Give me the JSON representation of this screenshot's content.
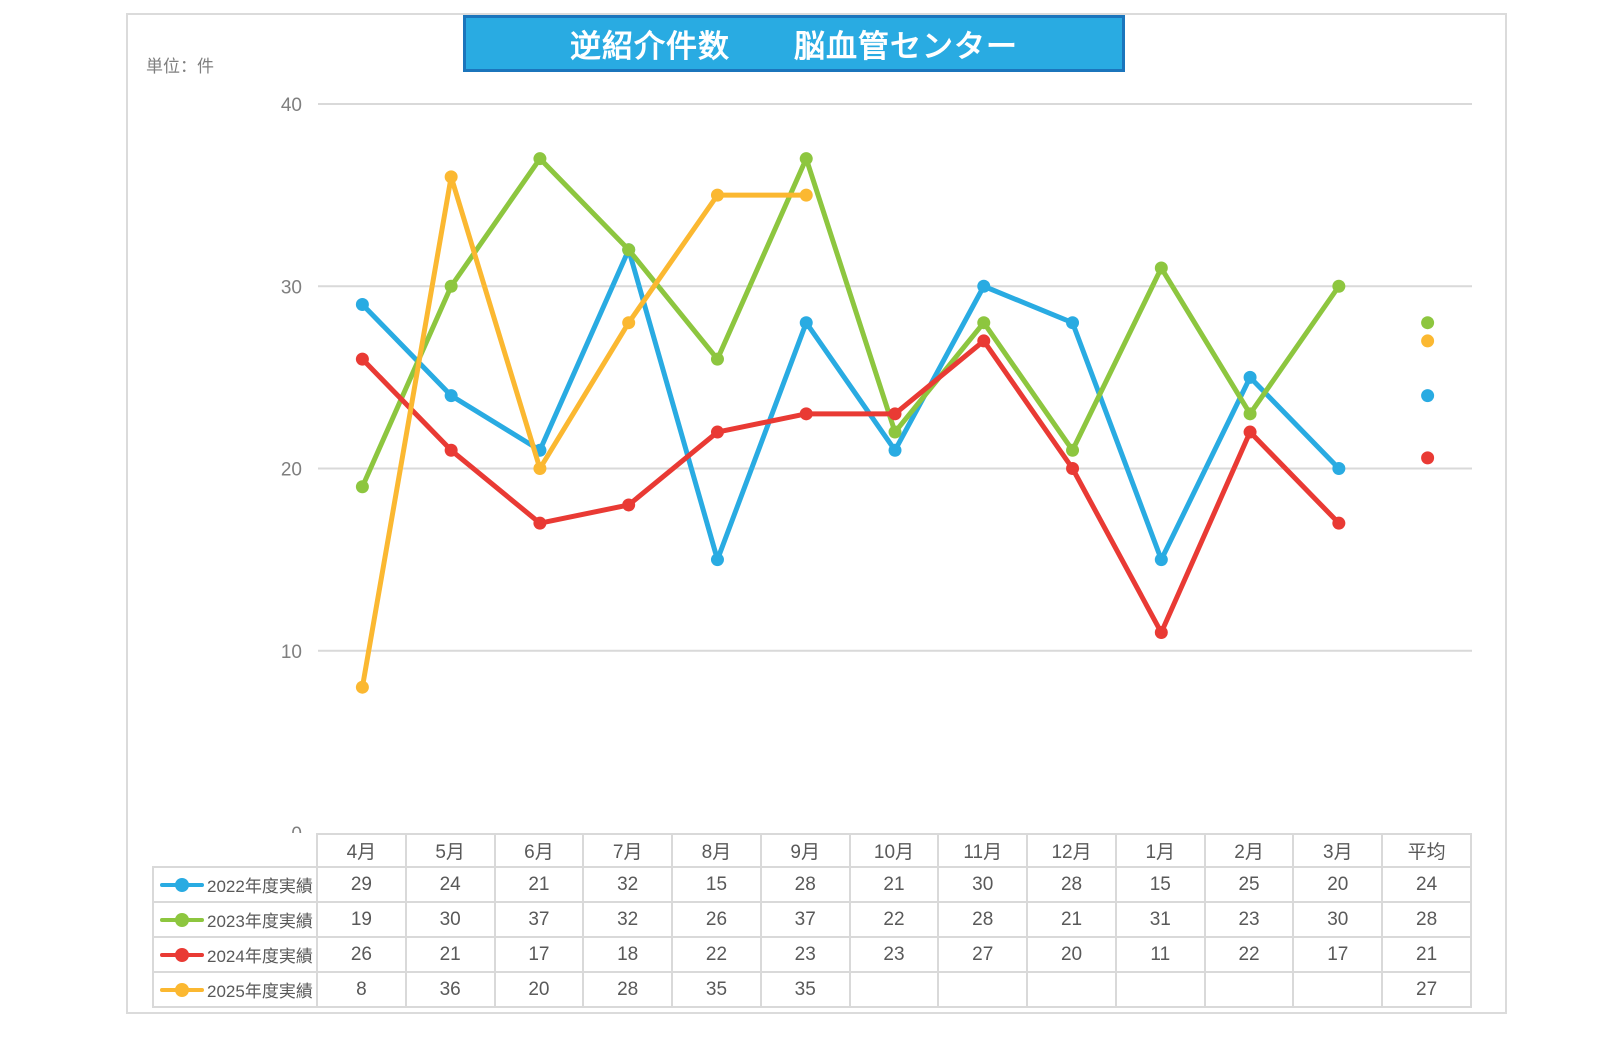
{
  "page": {
    "banner_title": "逆紹介件数　　脳血管センター",
    "unit_label": "単位：件"
  },
  "colors": {
    "banner_fill": "#29ABE2",
    "banner_border": "#1B75BC",
    "grid_line": "#D9D9D9",
    "axis_text": "#7F7F7F",
    "table_border": "#D9D9D9",
    "table_text": "#595959"
  },
  "chart_data": {
    "type": "line",
    "title": "逆紹介件数　脳血管センター",
    "ylabel": "件",
    "categories": [
      "4月",
      "5月",
      "6月",
      "7月",
      "8月",
      "9月",
      "10月",
      "11月",
      "12月",
      "1月",
      "2月",
      "3月"
    ],
    "average_column_label": "平均",
    "series": [
      {
        "name": "2022年度実績",
        "color": "#29ABE2",
        "values": [
          29,
          24,
          21,
          32,
          15,
          28,
          21,
          30,
          28,
          15,
          25,
          20
        ],
        "average_display": 24
      },
      {
        "name": "2023年度実績",
        "color": "#8DC63F",
        "values": [
          19,
          30,
          37,
          32,
          26,
          37,
          22,
          28,
          21,
          31,
          23,
          30
        ],
        "average_display": 28
      },
      {
        "name": "2024年度実績",
        "color": "#E93A34",
        "values": [
          26,
          21,
          17,
          18,
          22,
          23,
          23,
          27,
          20,
          11,
          22,
          17
        ],
        "average_display": 21
      },
      {
        "name": "2025年度実績",
        "color": "#FBB831",
        "values": [
          8,
          36,
          20,
          28,
          35,
          35,
          null,
          null,
          null,
          null,
          null,
          null
        ],
        "average_display": 27
      }
    ],
    "ylim": [
      0,
      40
    ],
    "yticks": [
      0,
      10,
      20,
      30,
      40
    ],
    "grid": true,
    "legend_position": "table-left-column",
    "average_markers_plotted_at_right": true
  }
}
